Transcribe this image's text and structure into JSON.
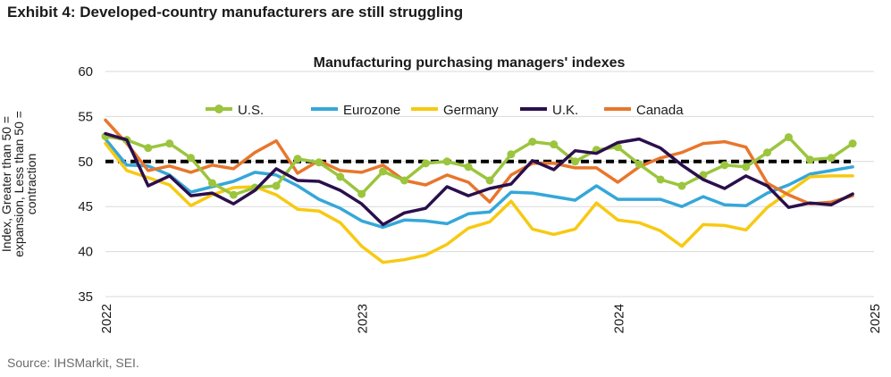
{
  "exhibit_title": "Exhibit 4: Developed-country manufacturers are still struggling",
  "source": "Source: IHSMarkit, SEI.",
  "colors": {
    "us": "#9bc53d",
    "eurozone": "#35a7d8",
    "germany": "#f7c912",
    "uk": "#2b0f4c",
    "canada": "#e8762c",
    "threshold": "#000000",
    "grid": "#d9d9d9"
  },
  "chart_data": {
    "type": "line",
    "title": "Manufacturing purchasing managers' indexes",
    "ylabel_lines": [
      "Index, Greater than 50 =",
      "expansion, Less than 50 =",
      "contraction"
    ],
    "ylim": [
      35,
      60
    ],
    "yticks": [
      35,
      40,
      45,
      50,
      55,
      60
    ],
    "xlim": [
      2022.0,
      2025.0
    ],
    "xticks": [
      {
        "value": 2022,
        "label": "2022"
      },
      {
        "value": 2023,
        "label": "2023"
      },
      {
        "value": 2024,
        "label": "2024"
      },
      {
        "value": 2025,
        "label": "2025"
      }
    ],
    "grid": true,
    "legend_position": "top",
    "threshold": 50,
    "x_start": 2022.0,
    "x_step_months": 1,
    "series": [
      {
        "key": "us",
        "name": "U.S.",
        "markers": true,
        "values": [
          52.8,
          52.4,
          51.5,
          52.0,
          50.4,
          47.6,
          46.3,
          47.1,
          47.3,
          50.3,
          49.9,
          48.3,
          46.4,
          48.9,
          47.9,
          49.8,
          50.0,
          49.4,
          47.9,
          50.8,
          52.2,
          51.9,
          50.0,
          51.3,
          51.6,
          49.7,
          48.0,
          47.3,
          48.5,
          49.6,
          49.4,
          51.0,
          52.7,
          50.2,
          50.4,
          52.0
        ]
      },
      {
        "key": "eurozone",
        "name": "Eurozone",
        "markers": false,
        "values": [
          52.5,
          49.6,
          49.5,
          48.5,
          46.6,
          47.2,
          47.8,
          48.8,
          48.5,
          47.3,
          45.8,
          44.8,
          43.4,
          42.7,
          43.5,
          43.4,
          43.1,
          44.2,
          44.4,
          46.6,
          46.5,
          46.1,
          45.7,
          47.3,
          45.8,
          45.8,
          45.8,
          45.0,
          46.1,
          45.2,
          45.1,
          46.5,
          47.4,
          48.6,
          49.0,
          49.4
        ]
      },
      {
        "key": "germany",
        "name": "Germany",
        "markers": false,
        "values": [
          52.0,
          49.0,
          48.2,
          47.4,
          45.1,
          46.3,
          47.1,
          47.2,
          46.3,
          44.7,
          44.5,
          43.2,
          40.6,
          38.8,
          39.1,
          39.6,
          40.8,
          42.6,
          43.3,
          45.6,
          42.5,
          41.9,
          42.5,
          45.4,
          43.5,
          43.2,
          42.3,
          40.6,
          43.0,
          42.9,
          42.4,
          44.9,
          46.6,
          48.3,
          48.4,
          48.4
        ]
      },
      {
        "key": "uk",
        "name": "U.K.",
        "markers": false,
        "values": [
          53.1,
          52.4,
          47.3,
          48.4,
          46.2,
          46.5,
          45.3,
          46.8,
          49.2,
          47.9,
          47.8,
          46.8,
          45.3,
          43.0,
          44.3,
          44.8,
          47.2,
          46.2,
          47.0,
          47.5,
          50.1,
          49.1,
          51.2,
          50.9,
          52.1,
          52.5,
          51.5,
          49.6,
          48.0,
          47.0,
          48.4,
          47.3,
          44.9,
          45.4,
          45.2,
          46.4
        ]
      },
      {
        "key": "canada",
        "name": "Canada",
        "markers": false,
        "values": [
          54.6,
          52.0,
          49.0,
          49.5,
          48.8,
          49.6,
          49.2,
          51.0,
          52.3,
          48.7,
          50.1,
          49.0,
          48.8,
          49.6,
          47.9,
          47.4,
          48.5,
          47.7,
          45.5,
          48.5,
          49.8,
          49.8,
          49.3,
          49.3,
          47.7,
          49.4,
          50.4,
          51.0,
          52.0,
          52.2,
          51.6,
          47.6,
          46.3,
          45.3,
          45.5,
          46.2
        ]
      }
    ]
  }
}
